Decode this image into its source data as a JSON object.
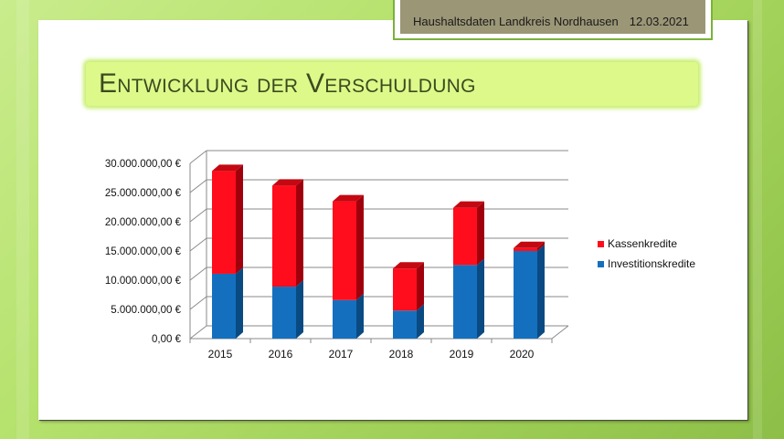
{
  "header": {
    "label": "Haushaltsdaten Landkreis Nordhausen",
    "date": "12.03.2021"
  },
  "slide": {
    "title": "Entwicklung der Verschuldung"
  },
  "legend": {
    "items": [
      {
        "label": "Kassenkredite",
        "color": "#ff0d1c"
      },
      {
        "label": "Investitionskredite",
        "color": "#1470be"
      }
    ]
  },
  "axis": {
    "y_ticks": [
      "0,00 €",
      "5.000.000,00 €",
      "10.000.000,00 €",
      "15.000.000,00 €",
      "20.000.000,00 €",
      "25.000.000,00 €",
      "30.000.000,00 €"
    ],
    "x_ticks": [
      "2015",
      "2016",
      "2017",
      "2018",
      "2019",
      "2020"
    ]
  },
  "chart_data": {
    "type": "bar",
    "stacked": true,
    "style": "3d-column",
    "title": "Entwicklung der Verschuldung",
    "xlabel": "",
    "ylabel": "",
    "categories": [
      "2015",
      "2016",
      "2017",
      "2018",
      "2019",
      "2020"
    ],
    "series": [
      {
        "name": "Investitionskredite",
        "color": "#1470be",
        "values": [
          11100000,
          8900000,
          6600000,
          4800000,
          12600000,
          15000000
        ]
      },
      {
        "name": "Kassenkredite",
        "color": "#ff0d1c",
        "values": [
          17600000,
          17300000,
          16900000,
          7200000,
          9800000,
          500000
        ]
      }
    ],
    "ylim": [
      0,
      30000000
    ],
    "y_tick_step": 5000000,
    "y_tick_format": "#.###.###,00 €",
    "grid": true,
    "legend_position": "right"
  }
}
